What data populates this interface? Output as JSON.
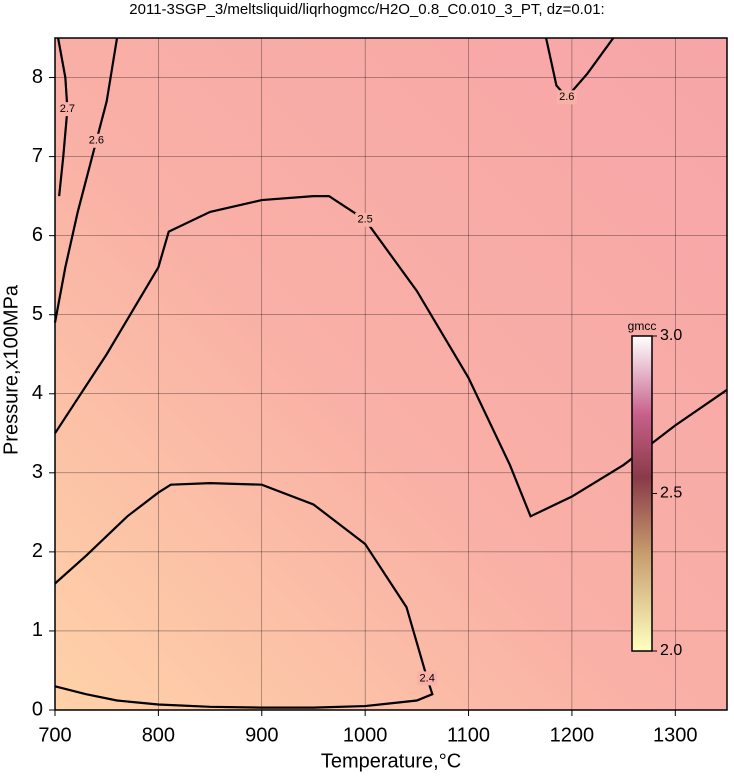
{
  "chart_data": {
    "type": "contour",
    "title": "2011-3SGP_3/meltsliquid/liqrhogmcc/H2O_0.8_C0.010_3_PT, dz=0.01:",
    "x_label": "Temperature,°C",
    "y_label": "Pressure,x100MPa",
    "xlim": [
      700,
      1350
    ],
    "ylim": [
      0,
      8.5
    ],
    "xticks": [
      700,
      800,
      900,
      1000,
      1100,
      1200,
      1300
    ],
    "yticks": [
      0,
      1,
      2,
      3,
      4,
      5,
      6,
      7,
      8
    ],
    "grid": true,
    "contours": [
      {
        "level": 2.4,
        "x": [
          700,
          730,
          770,
          800,
          812,
          850,
          900,
          950,
          1000,
          1040,
          1060,
          1065,
          1050,
          1000,
          950,
          900,
          850,
          800,
          760,
          730,
          700
        ],
        "y": [
          1.6,
          1.95,
          2.45,
          2.75,
          2.85,
          2.87,
          2.85,
          2.6,
          2.1,
          1.3,
          0.4,
          0.2,
          0.12,
          0.05,
          0.03,
          0.03,
          0.04,
          0.07,
          0.12,
          0.2,
          0.3
        ]
      },
      {
        "level": 2.5,
        "x": [
          700,
          750,
          800,
          810,
          850,
          900,
          950,
          965,
          1000,
          1050,
          1100,
          1140,
          1160,
          1200,
          1250,
          1300,
          1350
        ],
        "y": [
          3.5,
          4.5,
          5.6,
          6.05,
          6.3,
          6.45,
          6.5,
          6.5,
          6.2,
          5.3,
          4.2,
          3.1,
          2.45,
          2.7,
          3.1,
          3.6,
          4.05
        ]
      },
      {
        "level": 2.6,
        "x": [
          700,
          710,
          722,
          740,
          750,
          755,
          760
        ],
        "y": [
          4.9,
          5.6,
          6.3,
          7.2,
          7.7,
          8.1,
          8.5
        ]
      },
      {
        "level": 2.6,
        "x": [
          1175,
          1185,
          1195,
          1215,
          1240
        ],
        "y": [
          8.5,
          7.9,
          7.75,
          8.05,
          8.5
        ]
      },
      {
        "level": 2.7,
        "x": [
          703,
          710,
          712,
          708,
          704
        ],
        "y": [
          8.5,
          8.0,
          7.6,
          7.0,
          6.5
        ]
      }
    ],
    "colorbar": {
      "label": "gmcc",
      "lim": [
        2,
        3
      ],
      "ticks": [
        {
          "value": 2,
          "label": "2.0"
        },
        2.5,
        {
          "value": 3,
          "label": "3.0"
        }
      ]
    }
  }
}
